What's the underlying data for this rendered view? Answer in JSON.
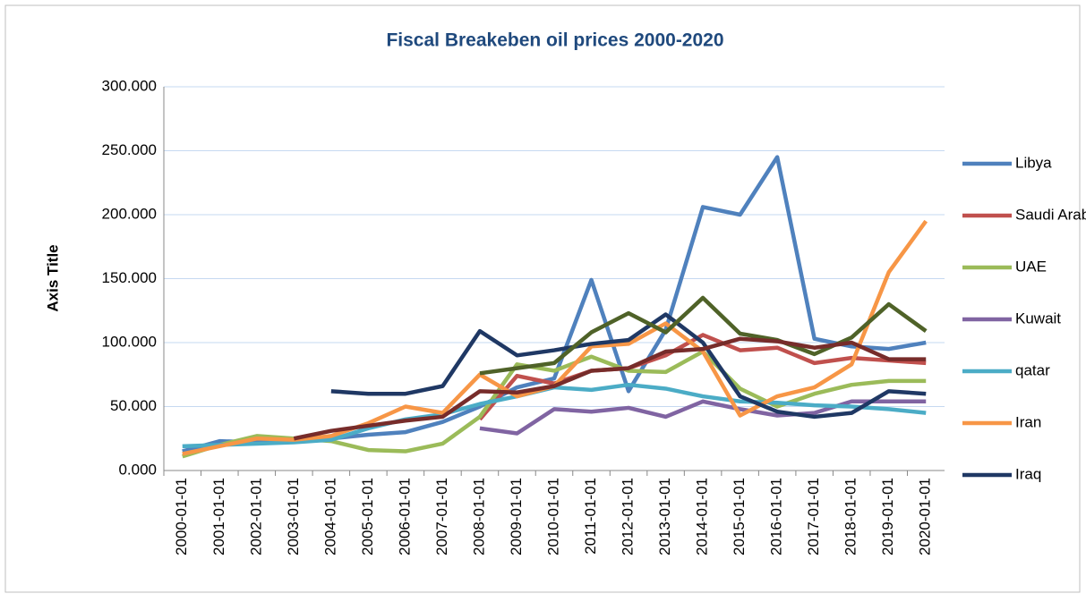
{
  "chart_data": {
    "type": "line",
    "title": "Fiscal Breakeben oil prices 2000-2020",
    "y_label": "Axis Title",
    "categories": [
      "2000-01-01",
      "2001-01-01",
      "2002-01-01",
      "2003-01-01",
      "2004-01-01",
      "2005-01-01",
      "2006-01-01",
      "2007-01-01",
      "2008-01-01",
      "2009-01-01",
      "2010-01-01",
      "2011-01-01",
      "2012-01-01",
      "2013-01-01",
      "2014-01-01",
      "2015-01-01",
      "2016-01-01",
      "2017-01-01",
      "2018-01-01",
      "2019-01-01",
      "2020-01-01"
    ],
    "ylim": [
      0,
      300
    ],
    "yticks": [
      {
        "value": 0,
        "label": "0.000"
      },
      {
        "value": 50,
        "label": "50.000"
      },
      {
        "value": 100,
        "label": "100.000"
      },
      {
        "value": 150,
        "label": "150.000"
      },
      {
        "value": 200,
        "label": "200.000"
      },
      {
        "value": 250,
        "label": "250.000"
      },
      {
        "value": 300,
        "label": "300.000"
      }
    ],
    "grid": true,
    "legend": "right",
    "series": [
      {
        "name": "Libya",
        "color": "#4f81bd",
        "values": [
          15,
          23,
          22,
          24,
          25,
          28,
          30,
          38,
          50,
          65,
          72,
          149,
          62,
          110,
          206,
          200,
          245,
          103,
          97,
          95,
          100
        ]
      },
      {
        "name": "Saudi Arabia",
        "color": "#c0504d",
        "values": [
          null,
          null,
          null,
          null,
          null,
          null,
          null,
          null,
          40,
          74,
          68,
          78,
          80,
          90,
          106,
          94,
          96,
          84,
          88,
          86,
          84
        ]
      },
      {
        "name": "UAE",
        "color": "#9bbb59",
        "values": [
          11,
          20,
          27,
          25,
          23,
          16,
          15,
          21,
          42,
          83,
          78,
          89,
          78,
          77,
          93,
          64,
          50,
          60,
          67,
          70,
          70
        ]
      },
      {
        "name": "Kuwait",
        "color": "#8064a2",
        "values": [
          null,
          null,
          null,
          null,
          null,
          null,
          null,
          null,
          33,
          29,
          48,
          46,
          49,
          42,
          54,
          48,
          43,
          45,
          54,
          54,
          54
        ]
      },
      {
        "name": "qatar",
        "color": "#4bacc6",
        "values": [
          19,
          20,
          21,
          22,
          24,
          33,
          40,
          44,
          52,
          58,
          65,
          63,
          67,
          64,
          58,
          54,
          53,
          51,
          50,
          48,
          45
        ]
      },
      {
        "name": "Iran",
        "color": "#f79646",
        "values": [
          13,
          19,
          25,
          24,
          27,
          37,
          50,
          45,
          75,
          58,
          66,
          97,
          99,
          115,
          93,
          43,
          58,
          65,
          83,
          155,
          195
        ]
      },
      {
        "name": "Iraq",
        "color": "#1f3864",
        "values": [
          null,
          null,
          null,
          null,
          62,
          60,
          60,
          66,
          109,
          90,
          94,
          99,
          102,
          122,
          100,
          58,
          46,
          42,
          45,
          62,
          60
        ]
      },
      {
        "color": "#4f6228",
        "values": [
          null,
          null,
          null,
          null,
          null,
          null,
          null,
          null,
          76,
          80,
          84,
          108,
          123,
          108,
          135,
          107,
          102,
          91,
          104,
          130,
          109
        ]
      },
      {
        "color": "#772c2a",
        "values": [
          null,
          null,
          null,
          25,
          31,
          35,
          39,
          42,
          62,
          61,
          66,
          78,
          80,
          93,
          95,
          103,
          101,
          96,
          100,
          87,
          87
        ]
      }
    ]
  }
}
